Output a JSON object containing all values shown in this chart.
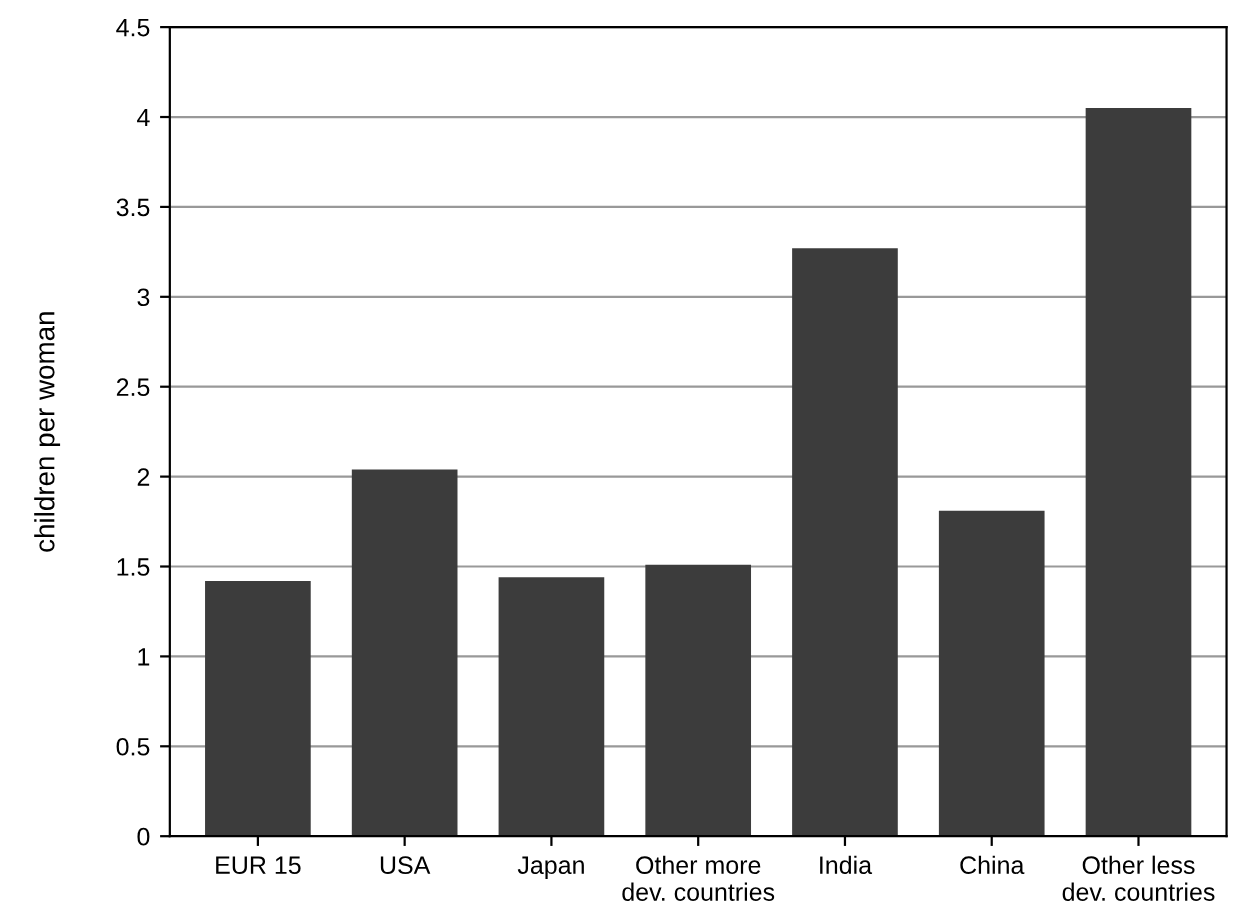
{
  "chart_data": {
    "type": "bar",
    "ylabel": "children per woman",
    "categories": [
      "EUR 15",
      "USA",
      "Japan",
      "Other more\ndev. countries",
      "India",
      "China",
      "Other less\ndev. countries"
    ],
    "values": [
      1.42,
      2.04,
      1.44,
      1.51,
      3.27,
      1.81,
      4.05
    ],
    "color": "#3c3c3c",
    "ylim": [
      0,
      4.5
    ],
    "yticks": [
      0,
      0.5,
      1,
      1.5,
      2,
      2.5,
      3,
      3.5,
      4,
      4.5
    ],
    "grid": "y",
    "legend": false
  }
}
